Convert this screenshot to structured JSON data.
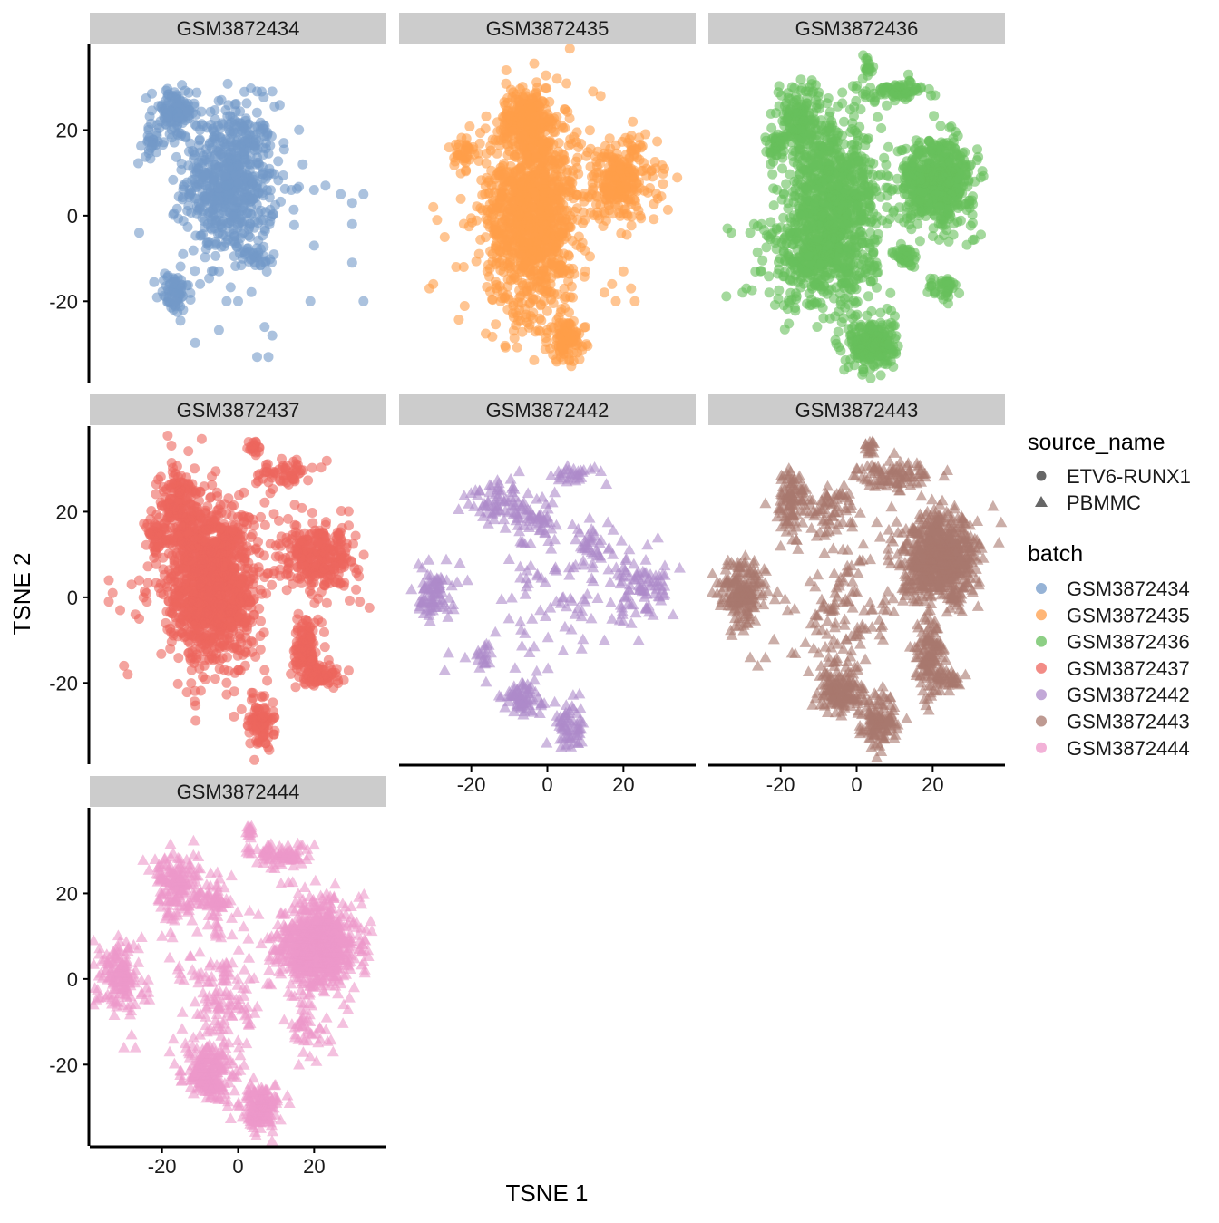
{
  "chart_data": {
    "type": "scatter",
    "title": "",
    "xlabel": "TSNE 1",
    "ylabel": "TSNE 2",
    "xlim": [
      -39,
      39
    ],
    "ylim": [
      -39,
      40
    ],
    "x_ticks": [
      -20,
      0,
      20
    ],
    "y_ticks": [
      -20,
      0,
      20
    ],
    "grid": false,
    "point_alpha": 0.6,
    "legend": {
      "placement": "right",
      "shape_title": "source_name",
      "shape_entries": [
        {
          "label": "ETV6-RUNX1",
          "shape": "circle"
        },
        {
          "label": "PBMMC",
          "shape": "triangle"
        }
      ],
      "color_title": "batch",
      "color_entries": [
        {
          "label": "GSM3872434",
          "color": "#7399C8"
        },
        {
          "label": "GSM3872435",
          "color": "#FF9E4A"
        },
        {
          "label": "GSM3872436",
          "color": "#67BF5C"
        },
        {
          "label": "GSM3872437",
          "color": "#ED665D"
        },
        {
          "label": "GSM3872442",
          "color": "#AD8BC9"
        },
        {
          "label": "GSM3872443",
          "color": "#A8786E"
        },
        {
          "label": "GSM3872444",
          "color": "#ED97CA"
        }
      ]
    },
    "series": [
      {
        "name": "GSM3872434",
        "source_name": "ETV6-RUNX1",
        "shape": "circle",
        "color": "#7399C8",
        "clusters": [
          {
            "cx": -2,
            "cy": 8,
            "sx": 6,
            "sy": 9,
            "n": 650
          },
          {
            "cx": -17,
            "cy": 24,
            "sx": 3,
            "sy": 3,
            "n": 110
          },
          {
            "cx": -22,
            "cy": 17,
            "sx": 1.5,
            "sy": 1.5,
            "n": 25
          },
          {
            "cx": -17,
            "cy": -18,
            "sx": 2,
            "sy": 2.5,
            "n": 70
          },
          {
            "cx": 5,
            "cy": -10,
            "sx": 2,
            "sy": 1.5,
            "n": 30
          }
        ],
        "outliers": [
          [
            5,
            29
          ],
          [
            9,
            29
          ],
          [
            12,
            17
          ],
          [
            17,
            12
          ],
          [
            20,
            6
          ],
          [
            23,
            7
          ],
          [
            27,
            5
          ],
          [
            30,
            3
          ],
          [
            33,
            5
          ],
          [
            30,
            -2
          ],
          [
            20,
            -7
          ],
          [
            30,
            -11
          ],
          [
            33,
            -20
          ],
          [
            19,
            -20
          ],
          [
            7,
            -26
          ],
          [
            9,
            -28
          ],
          [
            5,
            -33
          ],
          [
            8,
            -33
          ],
          [
            -26,
            -4
          ],
          [
            0,
            -20
          ],
          [
            -3,
            -20
          ],
          [
            -10,
            -16
          ],
          [
            -5,
            -13
          ],
          [
            14,
            6
          ]
        ]
      },
      {
        "name": "GSM3872435",
        "source_name": "ETV6-RUNX1",
        "shape": "circle",
        "color": "#FF9E4A",
        "clusters": [
          {
            "cx": -4,
            "cy": 1,
            "sx": 6,
            "sy": 12,
            "n": 1200
          },
          {
            "cx": -5,
            "cy": 23,
            "sx": 3.5,
            "sy": 3,
            "n": 200
          },
          {
            "cx": -22,
            "cy": 15,
            "sx": 1.2,
            "sy": 2,
            "n": 40
          },
          {
            "cx": 19,
            "cy": 8,
            "sx": 5,
            "sy": 5,
            "n": 260
          },
          {
            "cx": 5,
            "cy": -29,
            "sx": 2.5,
            "sy": 2.5,
            "n": 110
          }
        ],
        "outliers": [
          [
            12,
            29
          ],
          [
            14,
            28
          ],
          [
            -30,
            2
          ],
          [
            -29,
            -1
          ],
          [
            -27,
            -5
          ],
          [
            -30,
            -16
          ],
          [
            -31,
            -17
          ],
          [
            -24,
            -12
          ],
          [
            -22,
            -12
          ],
          [
            20,
            -13
          ],
          [
            17,
            -16
          ],
          [
            22,
            -17
          ],
          [
            18,
            -20
          ],
          [
            23,
            -20
          ],
          [
            15,
            -18
          ],
          [
            -2,
            -24
          ],
          [
            1,
            -26
          ],
          [
            6,
            -19
          ],
          [
            10,
            -13
          ]
        ]
      },
      {
        "name": "GSM3872436",
        "source_name": "ETV6-RUNX1",
        "shape": "circle",
        "color": "#67BF5C",
        "clusters": [
          {
            "cx": -6,
            "cy": 5,
            "sx": 6,
            "sy": 8,
            "n": 650
          },
          {
            "cx": -15,
            "cy": 22,
            "sx": 3,
            "sy": 5,
            "n": 180
          },
          {
            "cx": -21,
            "cy": 16,
            "sx": 1.3,
            "sy": 1.5,
            "n": 30
          },
          {
            "cx": -9,
            "cy": -10,
            "sx": 7,
            "sy": 6,
            "n": 450
          },
          {
            "cx": 21,
            "cy": 8,
            "sx": 5,
            "sy": 5,
            "n": 550
          },
          {
            "cx": 10,
            "cy": 29,
            "sx": 5,
            "sy": 1.2,
            "n": 80
          },
          {
            "cx": 3,
            "cy": 35,
            "sx": 0.8,
            "sy": 1.3,
            "n": 20
          },
          {
            "cx": 4,
            "cy": -30,
            "sx": 3,
            "sy": 3,
            "n": 260
          },
          {
            "cx": 13,
            "cy": -10,
            "sx": 1.5,
            "sy": 1.5,
            "n": 40
          },
          {
            "cx": 23,
            "cy": -17,
            "sx": 2,
            "sy": 1.5,
            "n": 40
          }
        ],
        "outliers": [
          [
            -34,
            -3
          ],
          [
            -33,
            -4
          ],
          [
            -28,
            -4
          ],
          [
            -27,
            -2
          ],
          [
            -25,
            -2
          ],
          [
            -29,
            -17
          ],
          [
            -30,
            -18
          ],
          [
            -23,
            -18
          ],
          [
            -7,
            -24
          ],
          [
            -1,
            -24
          ]
        ]
      },
      {
        "name": "GSM3872437",
        "source_name": "ETV6-RUNX1",
        "shape": "circle",
        "color": "#ED665D",
        "clusters": [
          {
            "cx": -7,
            "cy": 3,
            "sx": 6,
            "sy": 9,
            "n": 1200
          },
          {
            "cx": -15,
            "cy": 21,
            "sx": 3,
            "sy": 5,
            "n": 200
          },
          {
            "cx": -22,
            "cy": 15,
            "sx": 1.2,
            "sy": 2,
            "n": 35
          },
          {
            "cx": 21,
            "cy": 9,
            "sx": 5,
            "sy": 4,
            "n": 280
          },
          {
            "cx": 12,
            "cy": 29,
            "sx": 4,
            "sy": 1.5,
            "n": 60
          },
          {
            "cx": 4,
            "cy": 35,
            "sx": 0.8,
            "sy": 1,
            "n": 20
          },
          {
            "cx": 18,
            "cy": -12,
            "sx": 1.5,
            "sy": 3.5,
            "n": 120
          },
          {
            "cx": 22,
            "cy": -18,
            "sx": 2.5,
            "sy": 1.5,
            "n": 70
          },
          {
            "cx": 6,
            "cy": -29,
            "sx": 1.8,
            "sy": 3,
            "n": 90
          }
        ],
        "outliers": [
          [
            -34,
            4
          ],
          [
            -33,
            1
          ],
          [
            -34,
            -1
          ],
          [
            -31,
            -3
          ],
          [
            -27,
            -4
          ],
          [
            -26,
            -5
          ],
          [
            -24,
            -1
          ],
          [
            -30,
            -16
          ],
          [
            -29,
            -18
          ],
          [
            -26,
            4
          ],
          [
            -28,
            3
          ],
          [
            32,
            -1
          ],
          [
            -6,
            -19
          ],
          [
            -3,
            -20
          ],
          [
            0,
            -17
          ],
          [
            7,
            -17
          ],
          [
            -1,
            -22
          ]
        ]
      },
      {
        "name": "GSM3872442",
        "source_name": "PBMMC",
        "shape": "triangle",
        "color": "#AD8BC9",
        "clusters": [
          {
            "cx": -30,
            "cy": 1,
            "sx": 2.5,
            "sy": 3,
            "n": 80
          },
          {
            "cx": -12,
            "cy": 22,
            "sx": 4,
            "sy": 3,
            "n": 80
          },
          {
            "cx": -2,
            "cy": 18,
            "sx": 2.5,
            "sy": 3,
            "n": 40
          },
          {
            "cx": 25,
            "cy": 3,
            "sx": 5,
            "sy": 4,
            "n": 90
          },
          {
            "cx": 13,
            "cy": 12,
            "sx": 3,
            "sy": 3,
            "n": 40
          },
          {
            "cx": 7,
            "cy": 29,
            "sx": 3.5,
            "sy": 1,
            "n": 30
          },
          {
            "cx": -6,
            "cy": -24,
            "sx": 3,
            "sy": 2,
            "n": 70
          },
          {
            "cx": 6,
            "cy": -30,
            "sx": 2,
            "sy": 2.5,
            "n": 60
          },
          {
            "cx": 1,
            "cy": 0,
            "sx": 7,
            "sy": 9,
            "n": 70
          },
          {
            "cx": -16,
            "cy": -14,
            "sx": 1.5,
            "sy": 2,
            "n": 20
          }
        ],
        "outliers": [
          [
            -26,
            -13
          ],
          [
            -27,
            -17
          ],
          [
            -21,
            4
          ],
          [
            -23,
            8
          ],
          [
            17,
            -5
          ],
          [
            24,
            -10
          ],
          [
            15,
            -10
          ],
          [
            -4,
            -5
          ],
          [
            9,
            -12
          ]
        ]
      },
      {
        "name": "GSM3872443",
        "source_name": "PBMMC",
        "shape": "triangle",
        "color": "#A8786E",
        "clusters": [
          {
            "cx": -30,
            "cy": 1,
            "sx": 3,
            "sy": 4,
            "n": 180
          },
          {
            "cx": -17,
            "cy": 23,
            "sx": 2,
            "sy": 4,
            "n": 100
          },
          {
            "cx": -7,
            "cy": 20,
            "sx": 3,
            "sy": 3,
            "n": 60
          },
          {
            "cx": 22,
            "cy": 9,
            "sx": 5,
            "sy": 5,
            "n": 700
          },
          {
            "cx": 10,
            "cy": 29,
            "sx": 5,
            "sy": 1.5,
            "n": 90
          },
          {
            "cx": 3,
            "cy": 35,
            "sx": 0.8,
            "sy": 1.3,
            "n": 15
          },
          {
            "cx": -4,
            "cy": -22,
            "sx": 3,
            "sy": 2.5,
            "n": 140
          },
          {
            "cx": 6,
            "cy": -29,
            "sx": 2.5,
            "sy": 3,
            "n": 120
          },
          {
            "cx": 19,
            "cy": -14,
            "sx": 2,
            "sy": 4,
            "n": 120
          },
          {
            "cx": 24,
            "cy": -19,
            "sx": 2,
            "sy": 1.2,
            "n": 40
          },
          {
            "cx": -3,
            "cy": -4,
            "sx": 6,
            "sy": 9,
            "n": 120
          }
        ],
        "outliers": [
          [
            -24,
            -14
          ],
          [
            -26,
            -16
          ],
          [
            -28,
            -14
          ],
          [
            -17,
            -13
          ],
          [
            -10,
            -13
          ],
          [
            8,
            -3
          ],
          [
            -24,
            22
          ],
          [
            -20,
            12
          ]
        ]
      },
      {
        "name": "GSM3872444",
        "source_name": "PBMMC",
        "shape": "triangle",
        "color": "#ED97CA",
        "clusters": [
          {
            "cx": -31,
            "cy": 1,
            "sx": 3,
            "sy": 4,
            "n": 150
          },
          {
            "cx": -16,
            "cy": 22,
            "sx": 3,
            "sy": 4,
            "n": 160
          },
          {
            "cx": -6,
            "cy": 18,
            "sx": 3,
            "sy": 3,
            "n": 70
          },
          {
            "cx": 21,
            "cy": 8,
            "sx": 5,
            "sy": 5,
            "n": 750
          },
          {
            "cx": 11,
            "cy": 29,
            "sx": 4,
            "sy": 1.5,
            "n": 80
          },
          {
            "cx": 3,
            "cy": 35,
            "sx": 0.7,
            "sy": 1,
            "n": 15
          },
          {
            "cx": -8,
            "cy": -22,
            "sx": 3,
            "sy": 3,
            "n": 200
          },
          {
            "cx": 6,
            "cy": -30,
            "sx": 2.5,
            "sy": 2.5,
            "n": 170
          },
          {
            "cx": -4,
            "cy": -5,
            "sx": 5,
            "sy": 7,
            "n": 140
          },
          {
            "cx": 18,
            "cy": -12,
            "sx": 2.5,
            "sy": 3,
            "n": 40
          }
        ],
        "outliers": [
          [
            -28,
            -13
          ],
          [
            -30,
            -16
          ],
          [
            -27,
            -16
          ],
          [
            -17,
            -14
          ],
          [
            -18,
            -17
          ],
          [
            -13,
            -17
          ],
          [
            16,
            -20
          ],
          [
            25,
            -17
          ],
          [
            -24,
            -2
          ],
          [
            -20,
            10
          ],
          [
            -18,
            5
          ]
        ]
      }
    ]
  }
}
